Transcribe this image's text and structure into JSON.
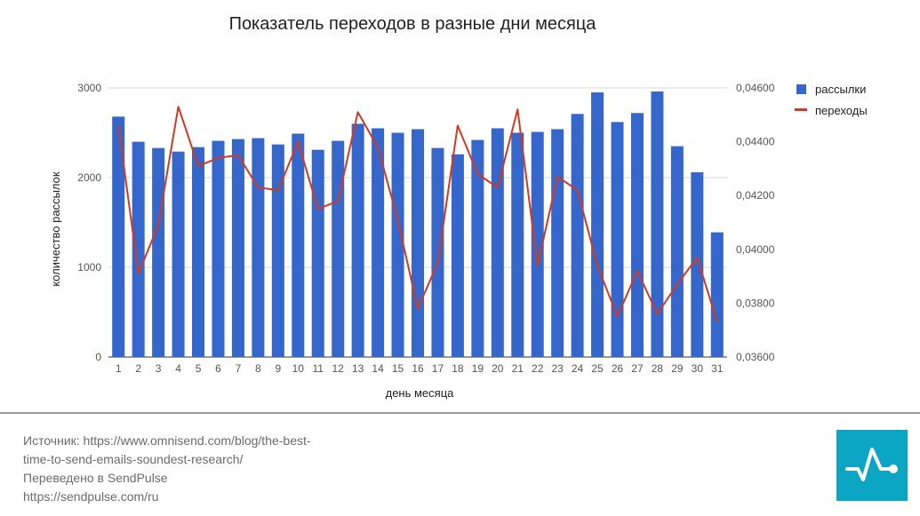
{
  "colors": {
    "bars": "#3466cc",
    "line": "#d13a22",
    "logo_bg": "#0aa6c4",
    "grid": "#d9d9d9"
  },
  "chart_data": {
    "type": "bar+line",
    "title": "Показатель переходов в разные дни месяца",
    "xlabel": "день месяца",
    "ylabel": "количество рассылок",
    "categories": [
      "1",
      "2",
      "3",
      "4",
      "5",
      "6",
      "7",
      "8",
      "9",
      "10",
      "11",
      "12",
      "13",
      "14",
      "15",
      "16",
      "17",
      "18",
      "19",
      "20",
      "21",
      "22",
      "23",
      "24",
      "25",
      "26",
      "27",
      "28",
      "29",
      "30",
      "31"
    ],
    "y_left": {
      "ylim": [
        0,
        3000
      ],
      "ticks": [
        "0",
        "1000",
        "2000",
        "3000"
      ]
    },
    "y_right": {
      "ylim": [
        0.036,
        0.046
      ],
      "ticks": [
        "0,03600",
        "0,03800",
        "0,04000",
        "0,04200",
        "0,04400",
        "0,04600"
      ]
    },
    "grid": true,
    "legend_position": "right",
    "series": [
      {
        "name": "рассылки",
        "type": "bar",
        "axis": "left",
        "values": [
          2680,
          2400,
          2330,
          2290,
          2340,
          2410,
          2430,
          2440,
          2370,
          2490,
          2310,
          2410,
          2600,
          2550,
          2500,
          2540,
          2330,
          2260,
          2420,
          2550,
          2500,
          2510,
          2540,
          2710,
          2950,
          2620,
          2720,
          2960,
          2350,
          2060,
          1390
        ]
      },
      {
        "name": "переходы",
        "type": "line",
        "axis": "right",
        "values": [
          0.0446,
          0.0391,
          0.0409,
          0.0453,
          0.0431,
          0.0434,
          0.0435,
          0.0423,
          0.0422,
          0.044,
          0.0415,
          0.0418,
          0.0451,
          0.0438,
          0.0411,
          0.0378,
          0.0395,
          0.0446,
          0.0428,
          0.0423,
          0.0452,
          0.0394,
          0.0427,
          0.0422,
          0.0394,
          0.0375,
          0.0392,
          0.0376,
          0.0387,
          0.0397,
          0.0373
        ]
      }
    ]
  },
  "footer": {
    "line1": "Источник: https://www.omnisend.com/blog/the-best-",
    "line2": "time-to-send-emails-soundest-research/",
    "line3": "Переведено в SendPulse",
    "line4": "https://sendpulse.com/ru"
  },
  "logo": {
    "icon": "pulse-line-icon"
  }
}
